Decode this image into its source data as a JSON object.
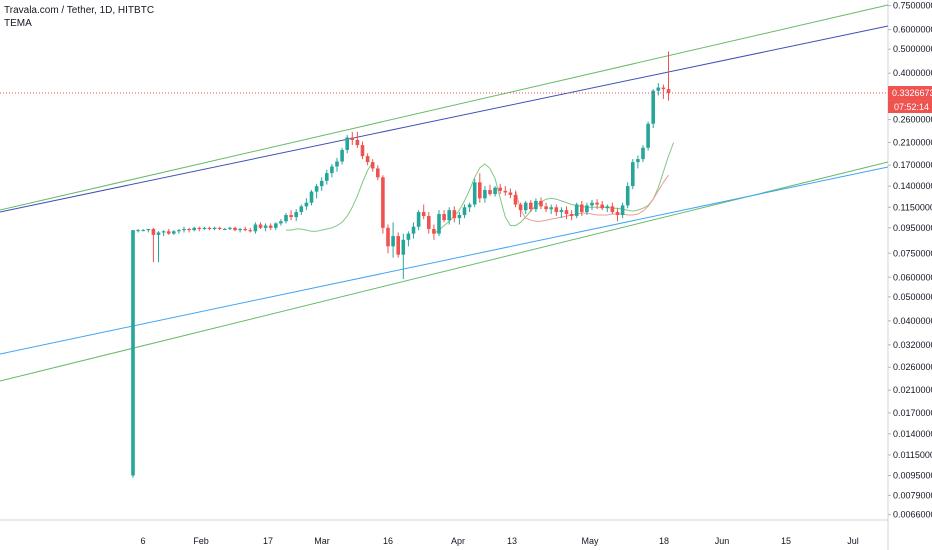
{
  "header": {
    "title": "Travala.com / Tether, 1D, HITBTC",
    "indicator": "TEMA"
  },
  "chart_data": {
    "type": "candlestick",
    "title": "Travala.com / Tether, 1D, HITBTC",
    "y_scale": "log",
    "ylim": [
      0.0064,
      0.79
    ],
    "x_tick_labels": [
      "6",
      "Feb",
      "17",
      "Mar",
      "16",
      "Apr",
      "13",
      "May",
      "18",
      "Jun",
      "15",
      "Jul"
    ],
    "y_tick_labels": [
      "0.7500000",
      "0.6000000",
      "0.5000000",
      "0.4000000",
      "0.3200000",
      "0.2600000",
      "0.2100000",
      "0.1700000",
      "0.1400000",
      "0.1150000",
      "0.0950000",
      "0.0750000",
      "0.0600000",
      "0.0500000",
      "0.0400000",
      "0.0320000",
      "0.0260000",
      "0.0210000",
      "0.0170000",
      "0.0140000",
      "0.0115000",
      "0.0095000",
      "0.0079000",
      "0.0066000"
    ],
    "y_ticks": [
      0.75,
      0.6,
      0.5,
      0.4,
      0.32,
      0.26,
      0.21,
      0.17,
      0.14,
      0.115,
      0.095,
      0.075,
      0.06,
      0.05,
      0.04,
      0.032,
      0.026,
      0.021,
      0.017,
      0.014,
      0.0115,
      0.0095,
      0.0079,
      0.0066
    ],
    "last_price": {
      "value": 0.3326673,
      "label": "0.3326673",
      "countdown": "07:52:14",
      "color": "#ef5350"
    },
    "colors": {
      "up": "#26a69a",
      "down": "#ef5350",
      "tema_long": "#81c784",
      "tema_short": "#ef9a9a",
      "channel": "#66bb6a",
      "trend_dark": "#3f51b5",
      "trend_light": "#42a5f5"
    },
    "candles": [
      [
        0.0095,
        0.093,
        0.0093,
        0.093
      ],
      [
        0.093,
        0.094,
        0.091,
        0.093
      ],
      [
        0.093,
        0.094,
        0.092,
        0.093
      ],
      [
        0.093,
        0.094,
        0.091,
        0.094
      ],
      [
        0.094,
        0.095,
        0.069,
        0.089
      ],
      [
        0.089,
        0.092,
        0.069,
        0.091
      ],
      [
        0.091,
        0.093,
        0.088,
        0.092
      ],
      [
        0.092,
        0.094,
        0.089,
        0.09
      ],
      [
        0.09,
        0.093,
        0.089,
        0.092
      ],
      [
        0.092,
        0.094,
        0.09,
        0.093
      ],
      [
        0.093,
        0.096,
        0.091,
        0.094
      ],
      [
        0.094,
        0.095,
        0.091,
        0.093
      ],
      [
        0.093,
        0.096,
        0.092,
        0.095
      ],
      [
        0.095,
        0.096,
        0.092,
        0.094
      ],
      [
        0.094,
        0.096,
        0.093,
        0.095
      ],
      [
        0.095,
        0.096,
        0.093,
        0.094
      ],
      [
        0.094,
        0.096,
        0.093,
        0.095
      ],
      [
        0.095,
        0.096,
        0.093,
        0.094
      ],
      [
        0.094,
        0.095,
        0.093,
        0.094
      ],
      [
        0.094,
        0.096,
        0.093,
        0.095
      ],
      [
        0.095,
        0.096,
        0.092,
        0.093
      ],
      [
        0.093,
        0.095,
        0.091,
        0.094
      ],
      [
        0.094,
        0.096,
        0.092,
        0.093
      ],
      [
        0.093,
        0.095,
        0.091,
        0.092
      ],
      [
        0.092,
        0.1,
        0.09,
        0.098
      ],
      [
        0.098,
        0.1,
        0.094,
        0.095
      ],
      [
        0.095,
        0.099,
        0.092,
        0.097
      ],
      [
        0.097,
        0.099,
        0.093,
        0.095
      ],
      [
        0.095,
        0.1,
        0.093,
        0.099
      ],
      [
        0.099,
        0.103,
        0.097,
        0.101
      ],
      [
        0.101,
        0.109,
        0.099,
        0.107
      ],
      [
        0.107,
        0.112,
        0.102,
        0.105
      ],
      [
        0.105,
        0.113,
        0.101,
        0.11
      ],
      [
        0.11,
        0.118,
        0.107,
        0.116
      ],
      [
        0.116,
        0.125,
        0.112,
        0.12
      ],
      [
        0.12,
        0.135,
        0.117,
        0.133
      ],
      [
        0.133,
        0.143,
        0.125,
        0.14
      ],
      [
        0.14,
        0.152,
        0.134,
        0.147
      ],
      [
        0.147,
        0.163,
        0.142,
        0.158
      ],
      [
        0.158,
        0.172,
        0.152,
        0.168
      ],
      [
        0.168,
        0.182,
        0.16,
        0.176
      ],
      [
        0.176,
        0.2,
        0.171,
        0.196
      ],
      [
        0.196,
        0.225,
        0.19,
        0.22
      ],
      [
        0.22,
        0.232,
        0.205,
        0.215
      ],
      [
        0.215,
        0.232,
        0.2,
        0.205
      ],
      [
        0.205,
        0.212,
        0.18,
        0.185
      ],
      [
        0.185,
        0.19,
        0.17,
        0.175
      ],
      [
        0.175,
        0.18,
        0.16,
        0.165
      ],
      [
        0.165,
        0.17,
        0.148,
        0.152
      ],
      [
        0.152,
        0.155,
        0.09,
        0.095
      ],
      [
        0.095,
        0.098,
        0.075,
        0.08
      ],
      [
        0.08,
        0.1,
        0.072,
        0.088
      ],
      [
        0.088,
        0.091,
        0.072,
        0.074
      ],
      [
        0.074,
        0.09,
        0.059,
        0.085
      ],
      [
        0.085,
        0.092,
        0.08,
        0.09
      ],
      [
        0.09,
        0.1,
        0.086,
        0.096
      ],
      [
        0.096,
        0.112,
        0.093,
        0.11
      ],
      [
        0.11,
        0.118,
        0.103,
        0.106
      ],
      [
        0.106,
        0.11,
        0.09,
        0.094
      ],
      [
        0.094,
        0.098,
        0.085,
        0.09
      ],
      [
        0.09,
        0.112,
        0.088,
        0.108
      ],
      [
        0.108,
        0.112,
        0.1,
        0.102
      ],
      [
        0.102,
        0.115,
        0.098,
        0.112
      ],
      [
        0.112,
        0.116,
        0.1,
        0.104
      ],
      [
        0.104,
        0.11,
        0.098,
        0.107
      ],
      [
        0.107,
        0.118,
        0.104,
        0.115
      ],
      [
        0.115,
        0.12,
        0.11,
        0.118
      ],
      [
        0.118,
        0.15,
        0.115,
        0.145
      ],
      [
        0.145,
        0.158,
        0.12,
        0.125
      ],
      [
        0.125,
        0.14,
        0.12,
        0.135
      ],
      [
        0.135,
        0.142,
        0.128,
        0.13
      ],
      [
        0.13,
        0.14,
        0.127,
        0.138
      ],
      [
        0.138,
        0.143,
        0.13,
        0.134
      ],
      [
        0.134,
        0.14,
        0.128,
        0.132
      ],
      [
        0.132,
        0.137,
        0.125,
        0.129
      ],
      [
        0.129,
        0.133,
        0.115,
        0.118
      ],
      [
        0.118,
        0.12,
        0.105,
        0.112
      ],
      [
        0.112,
        0.122,
        0.108,
        0.12
      ],
      [
        0.12,
        0.123,
        0.11,
        0.113
      ],
      [
        0.113,
        0.125,
        0.11,
        0.122
      ],
      [
        0.122,
        0.126,
        0.113,
        0.116
      ],
      [
        0.116,
        0.12,
        0.11,
        0.113
      ],
      [
        0.113,
        0.118,
        0.108,
        0.115
      ],
      [
        0.115,
        0.118,
        0.106,
        0.11
      ],
      [
        0.11,
        0.115,
        0.104,
        0.112
      ],
      [
        0.112,
        0.116,
        0.103,
        0.108
      ],
      [
        0.108,
        0.112,
        0.102,
        0.106
      ],
      [
        0.106,
        0.12,
        0.104,
        0.118
      ],
      [
        0.118,
        0.122,
        0.106,
        0.11
      ],
      [
        0.11,
        0.12,
        0.107,
        0.117
      ],
      [
        0.117,
        0.123,
        0.112,
        0.12
      ],
      [
        0.12,
        0.124,
        0.113,
        0.118
      ],
      [
        0.118,
        0.122,
        0.112,
        0.114
      ],
      [
        0.114,
        0.118,
        0.11,
        0.116
      ],
      [
        0.116,
        0.12,
        0.108,
        0.11
      ],
      [
        0.11,
        0.114,
        0.101,
        0.107
      ],
      [
        0.107,
        0.12,
        0.104,
        0.117
      ],
      [
        0.117,
        0.145,
        0.114,
        0.14
      ],
      [
        0.14,
        0.18,
        0.136,
        0.175
      ],
      [
        0.175,
        0.186,
        0.165,
        0.18
      ],
      [
        0.18,
        0.205,
        0.175,
        0.2
      ],
      [
        0.2,
        0.255,
        0.195,
        0.25
      ],
      [
        0.25,
        0.345,
        0.24,
        0.34
      ],
      [
        0.34,
        0.365,
        0.325,
        0.35
      ],
      [
        0.35,
        0.36,
        0.315,
        0.345
      ],
      [
        0.345,
        0.49,
        0.31,
        0.333
      ]
    ],
    "tema_short": [
      0.135,
      0.112,
      0.104,
      0.102,
      0.101,
      0.101,
      0.102,
      0.103,
      0.104,
      0.105,
      0.106,
      0.107,
      0.108,
      0.109,
      0.109,
      0.108,
      0.107,
      0.107,
      0.107,
      0.108,
      0.108,
      0.108,
      0.107,
      0.107,
      0.108,
      0.111,
      0.116,
      0.124,
      0.134,
      0.145,
      0.155
    ],
    "tema_long": [
      0.09,
      0.093,
      0.097,
      0.101,
      0.106,
      0.112,
      0.122,
      0.135,
      0.152,
      0.166,
      0.172,
      0.165,
      0.15,
      0.125,
      0.105,
      0.097,
      0.097,
      0.1,
      0.105,
      0.111,
      0.117,
      0.121,
      0.124,
      0.125,
      0.124,
      0.122,
      0.12,
      0.118,
      0.117,
      0.116,
      0.115,
      0.115,
      0.115,
      0.115,
      0.115,
      0.114,
      0.114,
      0.113,
      0.112,
      0.111,
      0.112,
      0.114,
      0.117,
      0.124,
      0.138,
      0.16,
      0.185,
      0.21
    ]
  }
}
